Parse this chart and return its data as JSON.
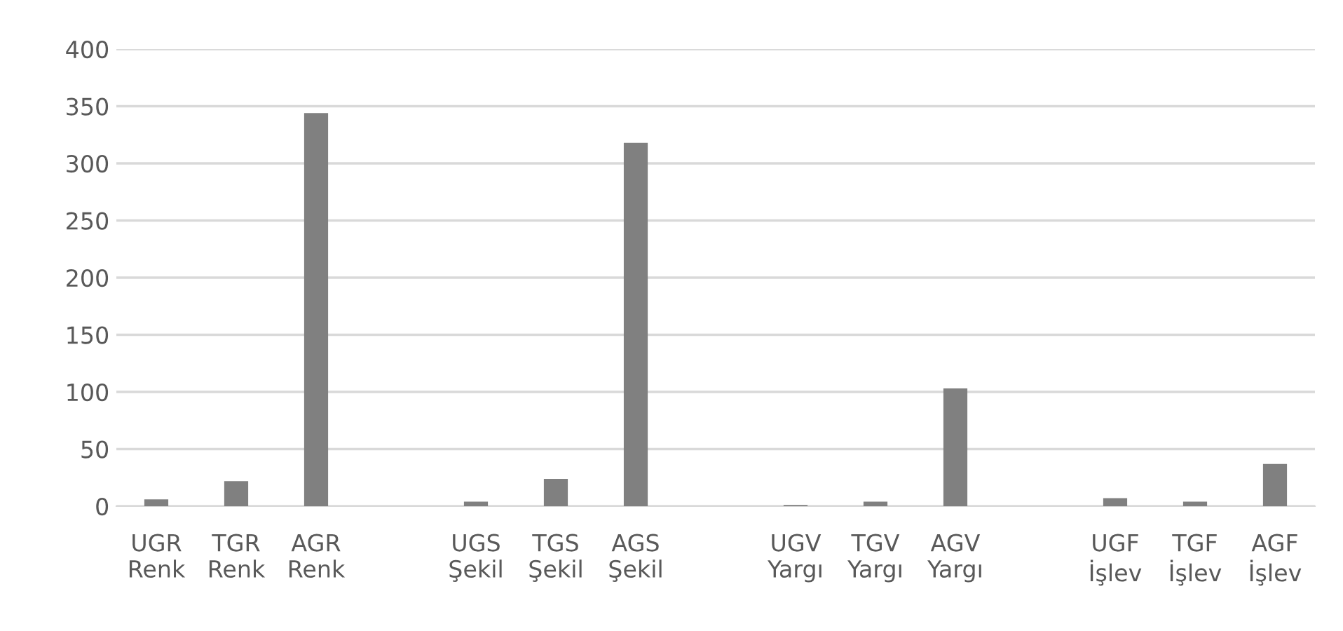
{
  "chart_data": {
    "type": "bar",
    "categories": [
      "UGR\nRenk",
      "TGR\nRenk",
      "AGR\nRenk",
      null,
      "UGS\nŞekil",
      "TGS\nŞekil",
      "AGS\nŞekil",
      null,
      "UGV\nYargı",
      "TGV\nYargı",
      "AGV\nYargı",
      null,
      "UGF\nİşlev",
      "TGF\nİşlev",
      "AGF\nİşlev"
    ],
    "values": [
      6,
      22,
      344,
      null,
      4,
      24,
      318,
      null,
      1,
      4,
      103,
      null,
      7,
      4,
      37
    ],
    "color": "#808080",
    "ylim": [
      0,
      400
    ],
    "yticks": [
      0,
      50,
      100,
      150,
      200,
      250,
      300,
      350,
      400
    ],
    "grid": "y",
    "legend": false
  }
}
